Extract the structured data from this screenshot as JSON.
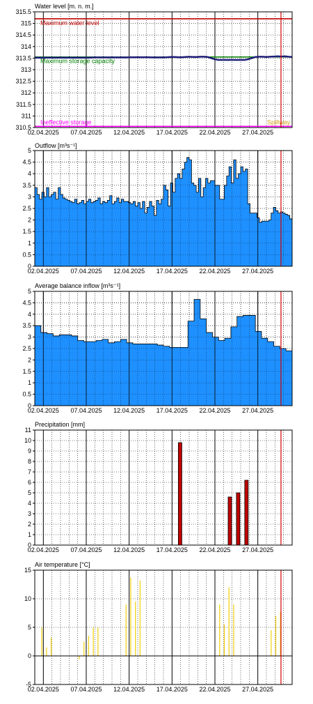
{
  "chart_data": [
    {
      "id": "water",
      "type": "line",
      "title": "Water level [m. n. m.]",
      "xlabel": "",
      "ylabel": "",
      "ylim": [
        310.5,
        315.5
      ],
      "yticks": [
        315.5,
        315,
        314.5,
        314,
        313.5,
        313,
        312.5,
        312,
        311.5,
        311,
        310.5
      ],
      "ref_lines": [
        {
          "label": "Maximum water level",
          "value": 315.2,
          "color": "#c00000"
        },
        {
          "label": "Maximum storage capacity",
          "value": 313.55,
          "color": "#008000"
        },
        {
          "label": "Ineffective storage",
          "value": 310.55,
          "color": "#ff00ff"
        }
      ],
      "annotations": [
        {
          "label": "Spillway",
          "color": "#d4a017"
        }
      ],
      "series": [
        {
          "color": "#1f1f7a",
          "values": [
            313.52,
            313.52,
            313.52,
            313.52,
            313.52,
            313.52,
            313.52,
            313.52,
            313.52,
            313.52,
            313.52,
            313.52,
            313.52,
            313.52,
            313.52,
            313.52,
            313.53,
            313.53,
            313.53,
            313.53,
            313.53,
            313.53,
            313.53,
            313.53,
            313.53,
            313.53,
            313.54,
            313.54,
            313.54,
            313.54,
            313.54,
            313.54,
            313.53,
            313.53,
            313.53,
            313.53,
            313.54,
            313.55,
            313.55,
            313.54,
            313.54,
            313.55,
            313.56,
            313.55,
            313.55,
            313.56,
            313.56,
            313.55,
            313.5,
            313.45,
            313.42,
            313.42,
            313.42,
            313.42,
            313.42,
            313.42,
            313.42,
            313.42,
            313.45,
            313.5,
            313.55,
            313.56,
            313.56,
            313.55,
            313.56,
            313.57,
            313.58,
            313.57,
            313.58,
            313.56,
            313.55
          ]
        }
      ]
    },
    {
      "id": "outflow",
      "type": "area",
      "title": "Outflow [m³s⁻¹]",
      "xlabel": "",
      "ylabel": "",
      "ylim": [
        0,
        5
      ],
      "yticks": [
        0,
        0.5,
        1,
        1.5,
        2,
        2.5,
        3,
        3.5,
        4,
        4.5,
        5
      ],
      "series": [
        {
          "color": "#1e90ff",
          "values": [
            3.4,
            3.1,
            2.9,
            3.2,
            3.0,
            3.4,
            3.0,
            3.1,
            3.2,
            2.9,
            3.4,
            3.1,
            2.95,
            2.9,
            2.85,
            2.8,
            2.75,
            2.9,
            2.7,
            2.75,
            2.85,
            2.7,
            2.8,
            2.9,
            2.75,
            2.8,
            2.85,
            2.95,
            2.7,
            2.8,
            2.75,
            2.85,
            3.05,
            2.7,
            2.8,
            2.95,
            2.75,
            2.9,
            2.8,
            2.8,
            2.75,
            2.7,
            2.8,
            2.6,
            2.75,
            2.5,
            2.8,
            2.3,
            2.55,
            2.8,
            2.6,
            2.2,
            2.85,
            2.7,
            2.9,
            3.5,
            3.3,
            2.6,
            3.6,
            3.2,
            3.8,
            4.0,
            3.8,
            4.2,
            4.5,
            4.7,
            4.6,
            3.6,
            3.5,
            3.2,
            3.8,
            3.0,
            3.4,
            3.8,
            3.6,
            3.7,
            3.7,
            3.5,
            3.5,
            2.9,
            2.9,
            3.5,
            3.9,
            4.3,
            3.6,
            4.6,
            3.8,
            4.0,
            4.3,
            4.1,
            4.2,
            2.7,
            2.3,
            2.3,
            2.3,
            2.1,
            1.9,
            1.95,
            1.95,
            1.95,
            2.0,
            2.3,
            2.55,
            2.4,
            2.3,
            2.35,
            2.3,
            2.25,
            2.2,
            2.05
          ]
        }
      ]
    },
    {
      "id": "inflow",
      "type": "area",
      "title": "Average balance inflow  [m³s⁻¹]",
      "xlabel": "",
      "ylabel": "",
      "ylim": [
        0,
        5
      ],
      "yticks": [
        0,
        0.5,
        1,
        1.5,
        2,
        2.5,
        3,
        3.5,
        4,
        4.5,
        5
      ],
      "series": [
        {
          "color": "#1e90ff",
          "values": [
            3.5,
            3.2,
            3.15,
            3.05,
            3.1,
            3.1,
            3.05,
            2.85,
            2.8,
            2.8,
            2.85,
            2.9,
            2.75,
            2.8,
            2.9,
            2.75,
            2.7,
            2.7,
            2.7,
            2.7,
            2.65,
            2.6,
            2.55,
            2.55,
            2.55,
            3.7,
            4.65,
            3.8,
            3.2,
            3.0,
            2.85,
            2.95,
            3.45,
            3.9,
            3.95,
            3.95,
            3.25,
            2.95,
            2.8,
            2.6,
            2.5,
            2.4
          ]
        }
      ]
    },
    {
      "id": "precip",
      "type": "bar",
      "title": "Precipitation [mm]",
      "xlabel": "",
      "ylabel": "",
      "ylim": [
        0,
        11
      ],
      "yticks": [
        0,
        1,
        2,
        3,
        4,
        5,
        6,
        7,
        8,
        9,
        10,
        11
      ],
      "series": [
        {
          "color": "#c00000",
          "values": [
            0,
            0,
            0,
            0,
            0,
            0,
            0,
            0,
            0,
            0,
            0,
            0,
            0,
            0,
            0,
            0,
            0,
            9.8,
            0,
            0,
            0,
            0,
            0,
            4.6,
            5.0,
            6.2,
            0,
            0,
            0,
            0,
            0
          ]
        }
      ]
    },
    {
      "id": "temp",
      "type": "bar",
      "title": "Air temperature [°C]",
      "xlabel": "",
      "ylabel": "",
      "ylim": [
        -5,
        15
      ],
      "yticks": [
        -5,
        0,
        5,
        10,
        15
      ],
      "series": [
        {
          "color": "#f2d21b",
          "values": [
            0,
            5,
            1.5,
            3.2,
            0,
            0,
            0,
            0,
            0,
            -0.6,
            2.5,
            3.5,
            5,
            5,
            0,
            0,
            0,
            0,
            0,
            9,
            13.7,
            9.5,
            13.2,
            0,
            0,
            0,
            0,
            0,
            0,
            0,
            0,
            0,
            0,
            0,
            0,
            0,
            0,
            0,
            0,
            9,
            5.5,
            12,
            9,
            0,
            0,
            0,
            0,
            0,
            0,
            0,
            4.5,
            7,
            7.7,
            0,
            0
          ]
        }
      ]
    }
  ],
  "x_axis": {
    "ticks": [
      "02.04.2025",
      "07.04.2025",
      "12.04.2025",
      "17.04.2025",
      "22.04.2025",
      "27.04.2025"
    ]
  }
}
